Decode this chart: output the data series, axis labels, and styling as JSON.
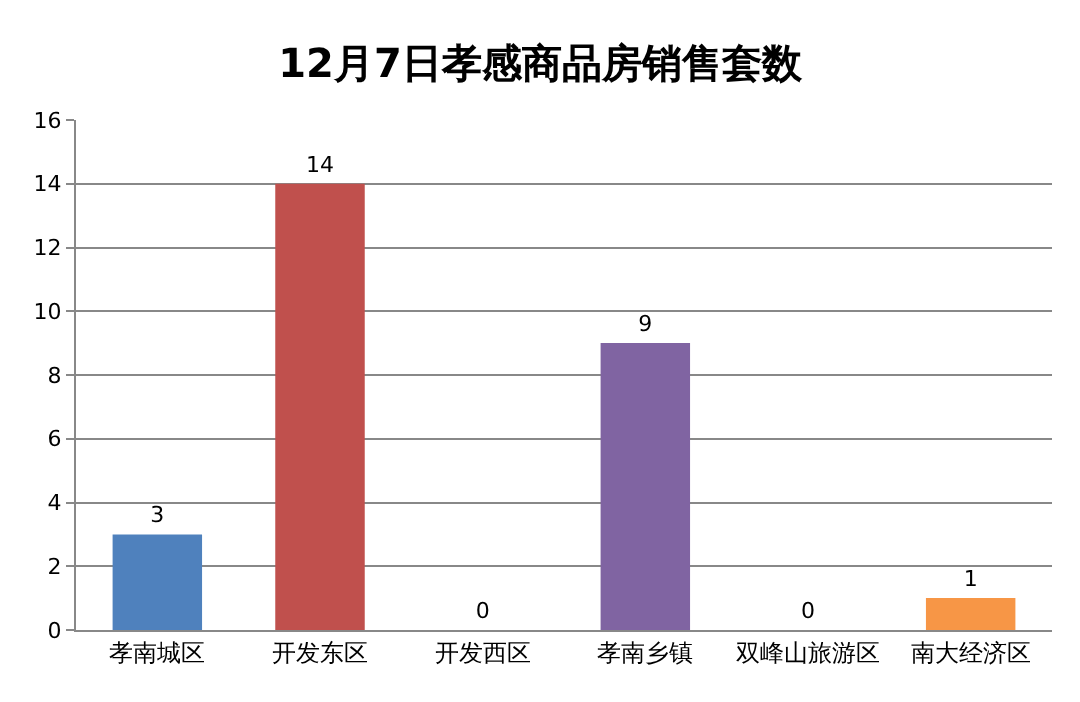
{
  "chart_data": {
    "type": "bar",
    "title": "12月7日孝感商品房销售套数",
    "categories": [
      "孝南城区",
      "开发东区",
      "开发西区",
      "孝南乡镇",
      "双峰山旅游区",
      "南大经济区"
    ],
    "values": [
      3,
      14,
      0,
      9,
      0,
      1
    ],
    "colors": [
      "#4f81bd",
      "#c0504d",
      "#9bbb59",
      "#8064a2",
      "#4bacc6",
      "#f79646"
    ],
    "ylim": [
      0,
      16
    ],
    "yticks": [
      0,
      2,
      4,
      6,
      8,
      10,
      12,
      14,
      16
    ],
    "grid": "y",
    "data_labels": true
  }
}
